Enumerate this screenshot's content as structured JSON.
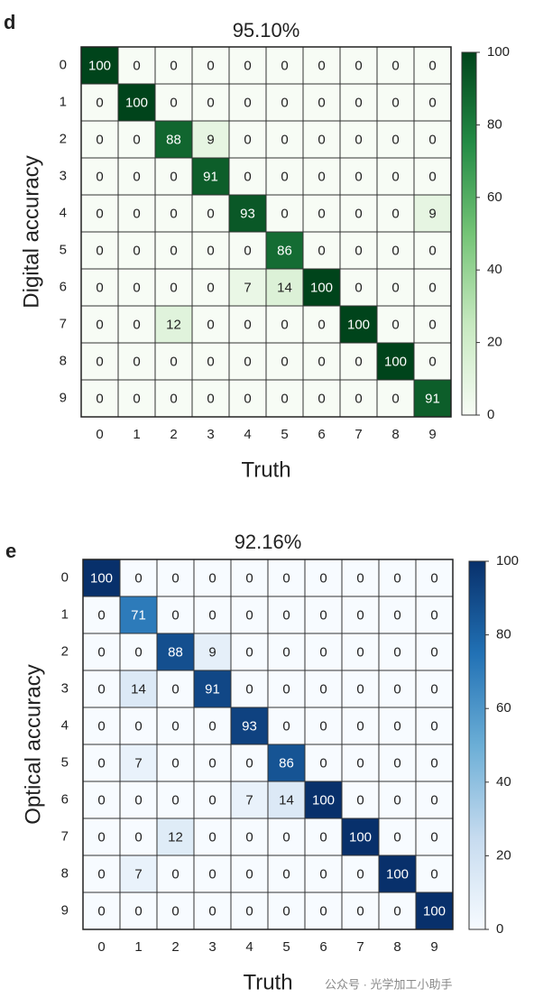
{
  "chart_data": [
    {
      "type": "heatmap",
      "panel_label": "d",
      "title": "95.10%",
      "xlabel": "Truth",
      "ylabel": "Digital accuracy",
      "x": [
        "0",
        "1",
        "2",
        "3",
        "4",
        "5",
        "6",
        "7",
        "8",
        "9"
      ],
      "y": [
        "0",
        "1",
        "2",
        "3",
        "4",
        "5",
        "6",
        "7",
        "8",
        "9"
      ],
      "values": [
        [
          100,
          0,
          0,
          0,
          0,
          0,
          0,
          0,
          0,
          0
        ],
        [
          0,
          100,
          0,
          0,
          0,
          0,
          0,
          0,
          0,
          0
        ],
        [
          0,
          0,
          88,
          9,
          0,
          0,
          0,
          0,
          0,
          0
        ],
        [
          0,
          0,
          0,
          91,
          0,
          0,
          0,
          0,
          0,
          0
        ],
        [
          0,
          0,
          0,
          0,
          93,
          0,
          0,
          0,
          0,
          9
        ],
        [
          0,
          0,
          0,
          0,
          0,
          86,
          0,
          0,
          0,
          0
        ],
        [
          0,
          0,
          0,
          0,
          7,
          14,
          100,
          0,
          0,
          0
        ],
        [
          0,
          0,
          12,
          0,
          0,
          0,
          0,
          100,
          0,
          0
        ],
        [
          0,
          0,
          0,
          0,
          0,
          0,
          0,
          0,
          100,
          0
        ],
        [
          0,
          0,
          0,
          0,
          0,
          0,
          0,
          0,
          0,
          91
        ]
      ],
      "colors": [
        "#f7fcf5",
        "#c7e9c0",
        "#74c476",
        "#238b45",
        "#00441b"
      ],
      "clim": [
        0,
        100
      ],
      "cticks": [
        0,
        20,
        40,
        60,
        80,
        100
      ]
    },
    {
      "type": "heatmap",
      "panel_label": "e",
      "title": "92.16%",
      "xlabel": "Truth",
      "ylabel": "Optical accuracy",
      "x": [
        "0",
        "1",
        "2",
        "3",
        "4",
        "5",
        "6",
        "7",
        "8",
        "9"
      ],
      "y": [
        "0",
        "1",
        "2",
        "3",
        "4",
        "5",
        "6",
        "7",
        "8",
        "9"
      ],
      "values": [
        [
          100,
          0,
          0,
          0,
          0,
          0,
          0,
          0,
          0,
          0
        ],
        [
          0,
          71,
          0,
          0,
          0,
          0,
          0,
          0,
          0,
          0
        ],
        [
          0,
          0,
          88,
          9,
          0,
          0,
          0,
          0,
          0,
          0
        ],
        [
          0,
          14,
          0,
          91,
          0,
          0,
          0,
          0,
          0,
          0
        ],
        [
          0,
          0,
          0,
          0,
          93,
          0,
          0,
          0,
          0,
          0
        ],
        [
          0,
          7,
          0,
          0,
          0,
          86,
          0,
          0,
          0,
          0
        ],
        [
          0,
          0,
          0,
          0,
          7,
          14,
          100,
          0,
          0,
          0
        ],
        [
          0,
          0,
          12,
          0,
          0,
          0,
          0,
          100,
          0,
          0
        ],
        [
          0,
          7,
          0,
          0,
          0,
          0,
          0,
          0,
          100,
          0
        ],
        [
          0,
          0,
          0,
          0,
          0,
          0,
          0,
          0,
          0,
          100
        ]
      ],
      "colors": [
        "#f7fbff",
        "#c6dbef",
        "#6baed6",
        "#2171b5",
        "#08306b"
      ],
      "clim": [
        0,
        100
      ],
      "cticks": [
        0,
        20,
        40,
        60,
        80,
        100
      ]
    }
  ],
  "watermark": "公众号 · 光学加工小助手"
}
